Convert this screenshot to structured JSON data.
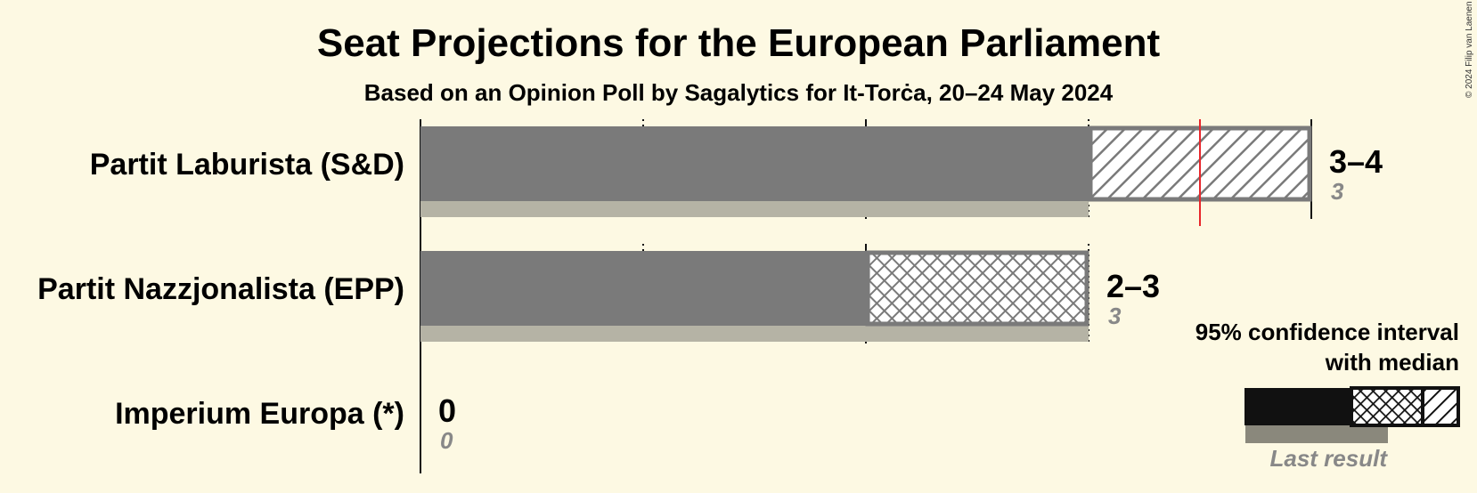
{
  "title": "Seat Projections for the European Parliament",
  "subtitle": "Based on an Opinion Poll by Sagalytics for It-Torċa, 20–24 May 2024",
  "copyright": "© 2024 Filip van Laenen",
  "legend": {
    "line1": "95% confidence interval",
    "line2": "with median",
    "last_result": "Last result"
  },
  "colors": {
    "background": "#fdf9e3",
    "bar": "#7a7a7a",
    "last_result": "#b5b3a5",
    "majority_line": "#e8262b",
    "legend_bar": "#111111"
  },
  "chart_data": {
    "type": "bar",
    "orientation": "horizontal",
    "title": "Seat Projections for the European Parliament",
    "subtitle": "Based on an Opinion Poll by Sagalytics for It-Torċa, 20–24 May 2024",
    "xlim": [
      0,
      4
    ],
    "majority_threshold": 3.5,
    "parties": [
      {
        "name": "Partit Laburista (S&D)",
        "ci_low": 3,
        "median": 3,
        "ci_high": 4,
        "range_label": "3–4",
        "last_result": 3,
        "last_label": "3"
      },
      {
        "name": "Partit Nazzjonalista (EPP)",
        "ci_low": 2,
        "median": 3,
        "ci_high": 3,
        "range_label": "2–3",
        "last_result": 3,
        "last_label": "3"
      },
      {
        "name": "Imperium Europa (*)",
        "ci_low": 0,
        "median": 0,
        "ci_high": 0,
        "range_label": "0",
        "last_result": 0,
        "last_label": "0"
      }
    ]
  }
}
